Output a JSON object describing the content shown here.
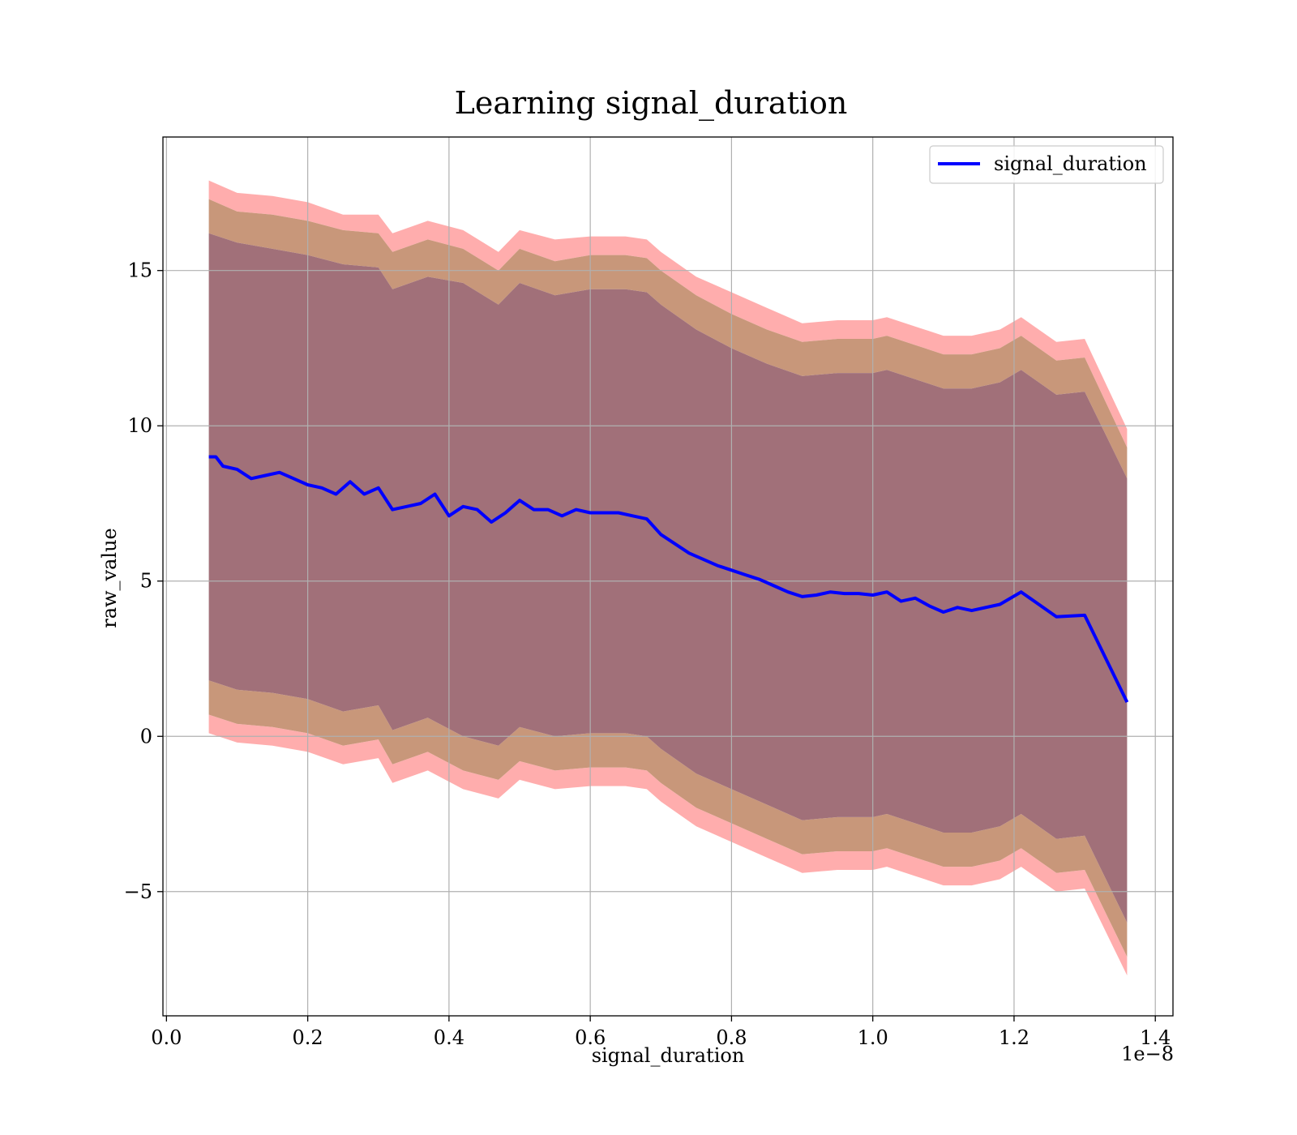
{
  "chart_data": {
    "type": "line",
    "title": "Learning signal_duration",
    "xlabel": "signal_duration",
    "ylabel": "raw_value",
    "x_offset_label": "1e−8",
    "xlim": [
      -0.005,
      1.425
    ],
    "ylim": [
      -9.0,
      19.3
    ],
    "x_ticks": [
      0.0,
      0.2,
      0.4,
      0.6,
      0.8,
      1.0,
      1.2,
      1.4
    ],
    "x_tick_labels": [
      "0.0",
      "0.2",
      "0.4",
      "0.6",
      "0.8",
      "1.0",
      "1.2",
      "1.4"
    ],
    "y_ticks": [
      -5,
      0,
      5,
      10,
      15
    ],
    "y_tick_labels": [
      "−5",
      "0",
      "5",
      "10",
      "15"
    ],
    "grid": true,
    "legend_position": "top-right",
    "line_color": "#0000ff",
    "outer_band_color": "#ff0000",
    "inner_band_color": "#8b3a62",
    "series": [
      {
        "name": "signal_duration",
        "x": [
          0.06,
          0.07,
          0.08,
          0.1,
          0.12,
          0.14,
          0.16,
          0.18,
          0.2,
          0.22,
          0.24,
          0.26,
          0.28,
          0.3,
          0.32,
          0.34,
          0.36,
          0.38,
          0.4,
          0.42,
          0.44,
          0.46,
          0.48,
          0.5,
          0.52,
          0.54,
          0.56,
          0.58,
          0.6,
          0.62,
          0.64,
          0.66,
          0.68,
          0.7,
          0.72,
          0.74,
          0.76,
          0.78,
          0.8,
          0.82,
          0.84,
          0.86,
          0.88,
          0.9,
          0.92,
          0.94,
          0.96,
          0.98,
          1.0,
          1.02,
          1.04,
          1.06,
          1.08,
          1.1,
          1.12,
          1.14,
          1.18,
          1.21,
          1.26,
          1.3,
          1.36
        ],
        "y": [
          9.0,
          9.0,
          8.7,
          8.6,
          8.3,
          8.4,
          8.5,
          8.3,
          8.1,
          8.0,
          7.8,
          8.2,
          7.8,
          8.0,
          7.3,
          7.4,
          7.5,
          7.8,
          7.1,
          7.4,
          7.3,
          6.9,
          7.2,
          7.6,
          7.3,
          7.3,
          7.1,
          7.3,
          7.2,
          7.2,
          7.2,
          7.1,
          7.0,
          6.5,
          6.2,
          5.9,
          5.7,
          5.5,
          5.35,
          5.2,
          5.05,
          4.85,
          4.65,
          4.5,
          4.55,
          4.65,
          4.6,
          4.6,
          4.55,
          4.65,
          4.35,
          4.45,
          4.2,
          4.0,
          4.15,
          4.05,
          4.25,
          4.65,
          3.85,
          3.9,
          1.1
        ]
      }
    ],
    "bands": {
      "x": [
        0.06,
        0.1,
        0.15,
        0.2,
        0.25,
        0.3,
        0.32,
        0.37,
        0.42,
        0.47,
        0.5,
        0.55,
        0.6,
        0.65,
        0.68,
        0.7,
        0.75,
        0.8,
        0.85,
        0.9,
        0.95,
        1.0,
        1.02,
        1.06,
        1.1,
        1.14,
        1.18,
        1.21,
        1.26,
        1.3,
        1.36
      ],
      "outer_upper": [
        17.9,
        17.5,
        17.4,
        17.2,
        16.8,
        16.8,
        16.2,
        16.6,
        16.3,
        15.6,
        16.3,
        16.0,
        16.1,
        16.1,
        16.0,
        15.6,
        14.8,
        14.3,
        13.8,
        13.3,
        13.4,
        13.4,
        13.5,
        13.2,
        12.9,
        12.9,
        13.1,
        13.5,
        12.7,
        12.8,
        9.9
      ],
      "mid_upper": [
        17.3,
        16.9,
        16.8,
        16.6,
        16.3,
        16.2,
        15.6,
        16.0,
        15.7,
        15.0,
        15.7,
        15.3,
        15.5,
        15.5,
        15.4,
        15.0,
        14.2,
        13.6,
        13.1,
        12.7,
        12.8,
        12.8,
        12.9,
        12.6,
        12.3,
        12.3,
        12.5,
        12.9,
        12.1,
        12.2,
        9.3
      ],
      "inner_upper": [
        16.2,
        15.9,
        15.7,
        15.5,
        15.2,
        15.1,
        14.4,
        14.8,
        14.6,
        13.9,
        14.6,
        14.2,
        14.4,
        14.4,
        14.3,
        13.9,
        13.1,
        12.5,
        12.0,
        11.6,
        11.7,
        11.7,
        11.8,
        11.5,
        11.2,
        11.2,
        11.4,
        11.8,
        11.0,
        11.1,
        8.3
      ],
      "inner_lower": [
        1.8,
        1.5,
        1.4,
        1.2,
        0.8,
        1.0,
        0.2,
        0.6,
        0.0,
        -0.3,
        0.3,
        0.0,
        0.1,
        0.1,
        0.0,
        -0.4,
        -1.2,
        -1.7,
        -2.2,
        -2.7,
        -2.6,
        -2.6,
        -2.5,
        -2.8,
        -3.1,
        -3.1,
        -2.9,
        -2.5,
        -3.3,
        -3.2,
        -6.0
      ],
      "mid_lower": [
        0.7,
        0.4,
        0.3,
        0.1,
        -0.3,
        -0.1,
        -0.9,
        -0.5,
        -1.1,
        -1.4,
        -0.8,
        -1.1,
        -1.0,
        -1.0,
        -1.1,
        -1.5,
        -2.3,
        -2.8,
        -3.3,
        -3.8,
        -3.7,
        -3.7,
        -3.6,
        -3.9,
        -4.2,
        -4.2,
        -4.0,
        -3.6,
        -4.4,
        -4.3,
        -7.1
      ],
      "outer_lower": [
        0.1,
        -0.2,
        -0.3,
        -0.5,
        -0.9,
        -0.7,
        -1.5,
        -1.1,
        -1.7,
        -2.0,
        -1.4,
        -1.7,
        -1.6,
        -1.6,
        -1.7,
        -2.1,
        -2.9,
        -3.4,
        -3.9,
        -4.4,
        -4.3,
        -4.3,
        -4.2,
        -4.5,
        -4.8,
        -4.8,
        -4.6,
        -4.2,
        -5.0,
        -4.9,
        -7.7
      ]
    }
  }
}
